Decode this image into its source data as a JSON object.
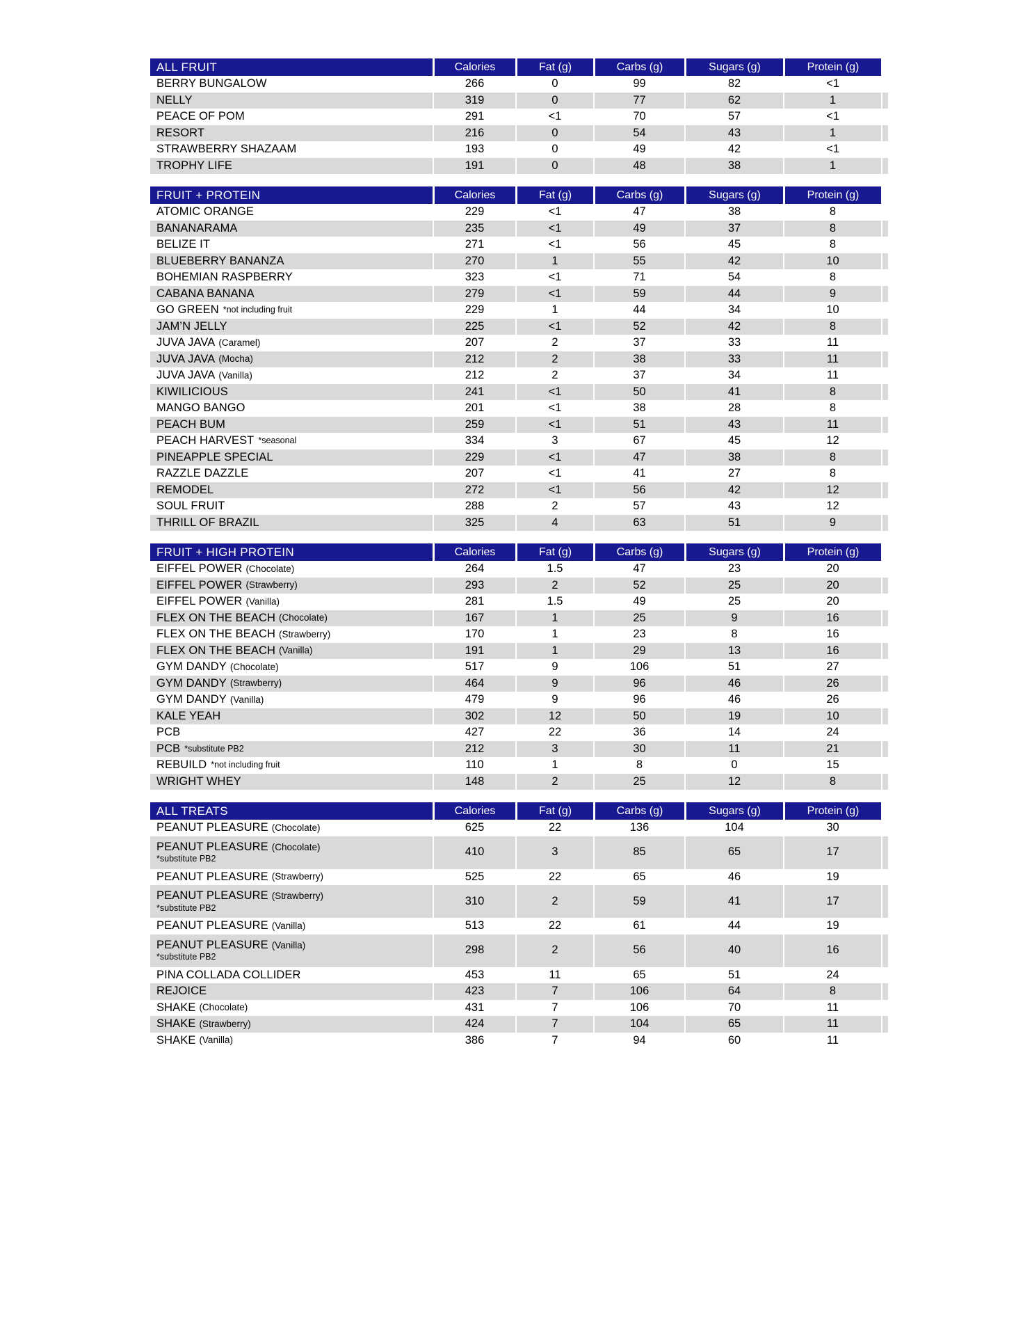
{
  "document": {
    "colors": {
      "header_bg": "#181890",
      "header_text": "#ffffff",
      "stripe": "#d9d9d9",
      "body_text": "#000000"
    },
    "sections": [
      {
        "title": "ALL FRUIT",
        "columns": [
          "Calories",
          "Fat (g)",
          "Carbs (g)",
          "Sugars (g)",
          "Protein (g)"
        ],
        "rows": [
          {
            "name": "BERRY BUNGALOW",
            "flavor": "",
            "note": "",
            "note_block": false,
            "values": [
              "266",
              "0",
              "99",
              "82",
              "<1"
            ]
          },
          {
            "name": "NELLY",
            "flavor": "",
            "note": "",
            "note_block": false,
            "values": [
              "319",
              "0",
              "77",
              "62",
              "1"
            ]
          },
          {
            "name": "PEACE OF POM",
            "flavor": "",
            "note": "",
            "note_block": false,
            "values": [
              "291",
              "<1",
              "70",
              "57",
              "<1"
            ]
          },
          {
            "name": "RESORT",
            "flavor": "",
            "note": "",
            "note_block": false,
            "values": [
              "216",
              "0",
              "54",
              "43",
              "1"
            ]
          },
          {
            "name": "STRAWBERRY SHAZAAM",
            "flavor": "",
            "note": "",
            "note_block": false,
            "values": [
              "193",
              "0",
              "49",
              "42",
              "<1"
            ]
          },
          {
            "name": "TROPHY LIFE",
            "flavor": "",
            "note": "",
            "note_block": false,
            "values": [
              "191",
              "0",
              "48",
              "38",
              "1"
            ]
          }
        ]
      },
      {
        "title": "FRUIT + PROTEIN",
        "columns": [
          "Calories",
          "Fat (g)",
          "Carbs (g)",
          "Sugars (g)",
          "Protein (g)"
        ],
        "rows": [
          {
            "name": "ATOMIC ORANGE",
            "flavor": "",
            "note": "",
            "note_block": false,
            "values": [
              "229",
              "<1",
              "47",
              "38",
              "8"
            ]
          },
          {
            "name": "BANANARAMA",
            "flavor": "",
            "note": "",
            "note_block": false,
            "values": [
              "235",
              "<1",
              "49",
              "37",
              "8"
            ]
          },
          {
            "name": "BELIZE IT",
            "flavor": "",
            "note": "",
            "note_block": false,
            "values": [
              "271",
              "<1",
              "56",
              "45",
              "8"
            ]
          },
          {
            "name": "BLUEBERRY BANANZA",
            "flavor": "",
            "note": "",
            "note_block": false,
            "values": [
              "270",
              "1",
              "55",
              "42",
              "10"
            ]
          },
          {
            "name": "BOHEMIAN RASPBERRY",
            "flavor": "",
            "note": "",
            "note_block": false,
            "values": [
              "323",
              "<1",
              "71",
              "54",
              "8"
            ]
          },
          {
            "name": "CABANA BANANA",
            "flavor": "",
            "note": "",
            "note_block": false,
            "values": [
              "279",
              "<1",
              "59",
              "44",
              "9"
            ]
          },
          {
            "name": "GO GREEN",
            "flavor": "",
            "note": "*not including fruit",
            "note_block": false,
            "values": [
              "229",
              "1",
              "44",
              "34",
              "10"
            ]
          },
          {
            "name": "JAM’N JELLY",
            "flavor": "",
            "note": "",
            "note_block": false,
            "values": [
              "225",
              "<1",
              "52",
              "42",
              "8"
            ]
          },
          {
            "name": "JUVA JAVA",
            "flavor": "(Caramel)",
            "note": "",
            "note_block": false,
            "values": [
              "207",
              "2",
              "37",
              "33",
              "11"
            ]
          },
          {
            "name": "JUVA JAVA",
            "flavor": "(Mocha)",
            "note": "",
            "note_block": false,
            "values": [
              "212",
              "2",
              "38",
              "33",
              "11"
            ]
          },
          {
            "name": "JUVA JAVA",
            "flavor": "(Vanilla)",
            "note": "",
            "note_block": false,
            "values": [
              "212",
              "2",
              "37",
              "34",
              "11"
            ]
          },
          {
            "name": "KIWILICIOUS",
            "flavor": "",
            "note": "",
            "note_block": false,
            "values": [
              "241",
              "<1",
              "50",
              "41",
              "8"
            ]
          },
          {
            "name": "MANGO BANGO",
            "flavor": "",
            "note": "",
            "note_block": false,
            "values": [
              "201",
              "<1",
              "38",
              "28",
              "8"
            ]
          },
          {
            "name": "PEACH BUM",
            "flavor": "",
            "note": "",
            "note_block": false,
            "values": [
              "259",
              "<1",
              "51",
              "43",
              "11"
            ]
          },
          {
            "name": "PEACH HARVEST",
            "flavor": "",
            "note": "*seasonal",
            "note_block": false,
            "values": [
              "334",
              "3",
              "67",
              "45",
              "12"
            ]
          },
          {
            "name": "PINEAPPLE SPECIAL",
            "flavor": "",
            "note": "",
            "note_block": false,
            "values": [
              "229",
              "<1",
              "47",
              "38",
              "8"
            ]
          },
          {
            "name": "RAZZLE DAZZLE",
            "flavor": "",
            "note": "",
            "note_block": false,
            "values": [
              "207",
              "<1",
              "41",
              "27",
              "8"
            ]
          },
          {
            "name": "REMODEL",
            "flavor": "",
            "note": "",
            "note_block": false,
            "values": [
              "272",
              "<1",
              "56",
              "42",
              "12"
            ]
          },
          {
            "name": "SOUL FRUIT",
            "flavor": "",
            "note": "",
            "note_block": false,
            "values": [
              "288",
              "2",
              "57",
              "43",
              "12"
            ]
          },
          {
            "name": "THRILL OF BRAZIL",
            "flavor": "",
            "note": "",
            "note_block": false,
            "values": [
              "325",
              "4",
              "63",
              "51",
              "9"
            ]
          }
        ]
      },
      {
        "title": "FRUIT + HIGH PROTEIN",
        "columns": [
          "Calories",
          "Fat (g)",
          "Carbs (g)",
          "Sugars (g)",
          "Protein (g)"
        ],
        "rows": [
          {
            "name": "EIFFEL POWER",
            "flavor": "(Chocolate)",
            "note": "",
            "note_block": false,
            "values": [
              "264",
              "1.5",
              "47",
              "23",
              "20"
            ]
          },
          {
            "name": "EIFFEL POWER",
            "flavor": "(Strawberry)",
            "note": "",
            "note_block": false,
            "values": [
              "293",
              "2",
              "52",
              "25",
              "20"
            ]
          },
          {
            "name": "EIFFEL POWER",
            "flavor": "(Vanilla)",
            "note": "",
            "note_block": false,
            "values": [
              "281",
              "1.5",
              "49",
              "25",
              "20"
            ]
          },
          {
            "name": "FLEX ON THE BEACH",
            "flavor": "(Chocolate)",
            "note": "",
            "note_block": false,
            "values": [
              "167",
              "1",
              "25",
              "9",
              "16"
            ]
          },
          {
            "name": "FLEX ON THE BEACH",
            "flavor": "(Strawberry)",
            "note": "",
            "note_block": false,
            "values": [
              "170",
              "1",
              "23",
              "8",
              "16"
            ]
          },
          {
            "name": "FLEX ON THE BEACH",
            "flavor": "(Vanilla)",
            "note": "",
            "note_block": false,
            "values": [
              "191",
              "1",
              "29",
              "13",
              "16"
            ]
          },
          {
            "name": "GYM DANDY",
            "flavor": "(Chocolate)",
            "note": "",
            "note_block": false,
            "values": [
              "517",
              "9",
              "106",
              "51",
              "27"
            ]
          },
          {
            "name": "GYM DANDY",
            "flavor": "(Strawberry)",
            "note": "",
            "note_block": false,
            "values": [
              "464",
              "9",
              "96",
              "46",
              "26"
            ]
          },
          {
            "name": "GYM DANDY",
            "flavor": "(Vanilla)",
            "note": "",
            "note_block": false,
            "values": [
              "479",
              "9",
              "96",
              "46",
              "26"
            ]
          },
          {
            "name": "KALE YEAH",
            "flavor": "",
            "note": "",
            "note_block": false,
            "values": [
              "302",
              "12",
              "50",
              "19",
              "10"
            ]
          },
          {
            "name": "PCB",
            "flavor": "",
            "note": "",
            "note_block": false,
            "values": [
              "427",
              "22",
              "36",
              "14",
              "24"
            ]
          },
          {
            "name": "PCB",
            "flavor": "",
            "note": "*substitute PB2",
            "note_block": false,
            "values": [
              "212",
              "3",
              "30",
              "11",
              "21"
            ]
          },
          {
            "name": "REBUILD",
            "flavor": "",
            "note": "*not including fruit",
            "note_block": false,
            "values": [
              "110",
              "1",
              "8",
              "0",
              "15"
            ]
          },
          {
            "name": "WRIGHT WHEY",
            "flavor": "",
            "note": "",
            "note_block": false,
            "values": [
              "148",
              "2",
              "25",
              "12",
              "8"
            ]
          }
        ]
      },
      {
        "title": "ALL TREATS",
        "columns": [
          "Calories",
          "Fat (g)",
          "Carbs (g)",
          "Sugars (g)",
          "Protein (g)"
        ],
        "rows": [
          {
            "name": "PEANUT PLEASURE",
            "flavor": "(Chocolate)",
            "note": "",
            "note_block": false,
            "values": [
              "625",
              "22",
              "136",
              "104",
              "30"
            ]
          },
          {
            "name": "PEANUT PLEASURE",
            "flavor": "(Chocolate)",
            "note": "*substitute PB2",
            "note_block": true,
            "values": [
              "410",
              "3",
              "85",
              "65",
              "17"
            ]
          },
          {
            "name": "PEANUT PLEASURE",
            "flavor": "(Strawberry)",
            "note": "",
            "note_block": false,
            "values": [
              "525",
              "22",
              "65",
              "46",
              "19"
            ]
          },
          {
            "name": "PEANUT PLEASURE",
            "flavor": "(Strawberry)",
            "note": "*substitute PB2",
            "note_block": true,
            "values": [
              "310",
              "2",
              "59",
              "41",
              "17"
            ]
          },
          {
            "name": "PEANUT PLEASURE",
            "flavor": "(Vanilla)",
            "note": "",
            "note_block": false,
            "values": [
              "513",
              "22",
              "61",
              "44",
              "19"
            ]
          },
          {
            "name": "PEANUT PLEASURE",
            "flavor": "(Vanilla)",
            "note": "*substitute PB2",
            "note_block": true,
            "values": [
              "298",
              "2",
              "56",
              "40",
              "16"
            ]
          },
          {
            "name": "PINA COLLADA COLLIDER",
            "flavor": "",
            "note": "",
            "note_block": false,
            "values": [
              "453",
              "11",
              "65",
              "51",
              "24"
            ]
          },
          {
            "name": "REJOICE",
            "flavor": "",
            "note": "",
            "note_block": false,
            "values": [
              "423",
              "7",
              "106",
              "64",
              "8"
            ]
          },
          {
            "name": "SHAKE",
            "flavor": "(Chocolate)",
            "note": "",
            "note_block": false,
            "values": [
              "431",
              "7",
              "106",
              "70",
              "11"
            ]
          },
          {
            "name": "SHAKE",
            "flavor": "(Strawberry)",
            "note": "",
            "note_block": false,
            "values": [
              "424",
              "7",
              "104",
              "65",
              "11"
            ]
          },
          {
            "name": "SHAKE",
            "flavor": "(Vanilla)",
            "note": "",
            "note_block": false,
            "values": [
              "386",
              "7",
              "94",
              "60",
              "11"
            ]
          }
        ]
      }
    ]
  }
}
